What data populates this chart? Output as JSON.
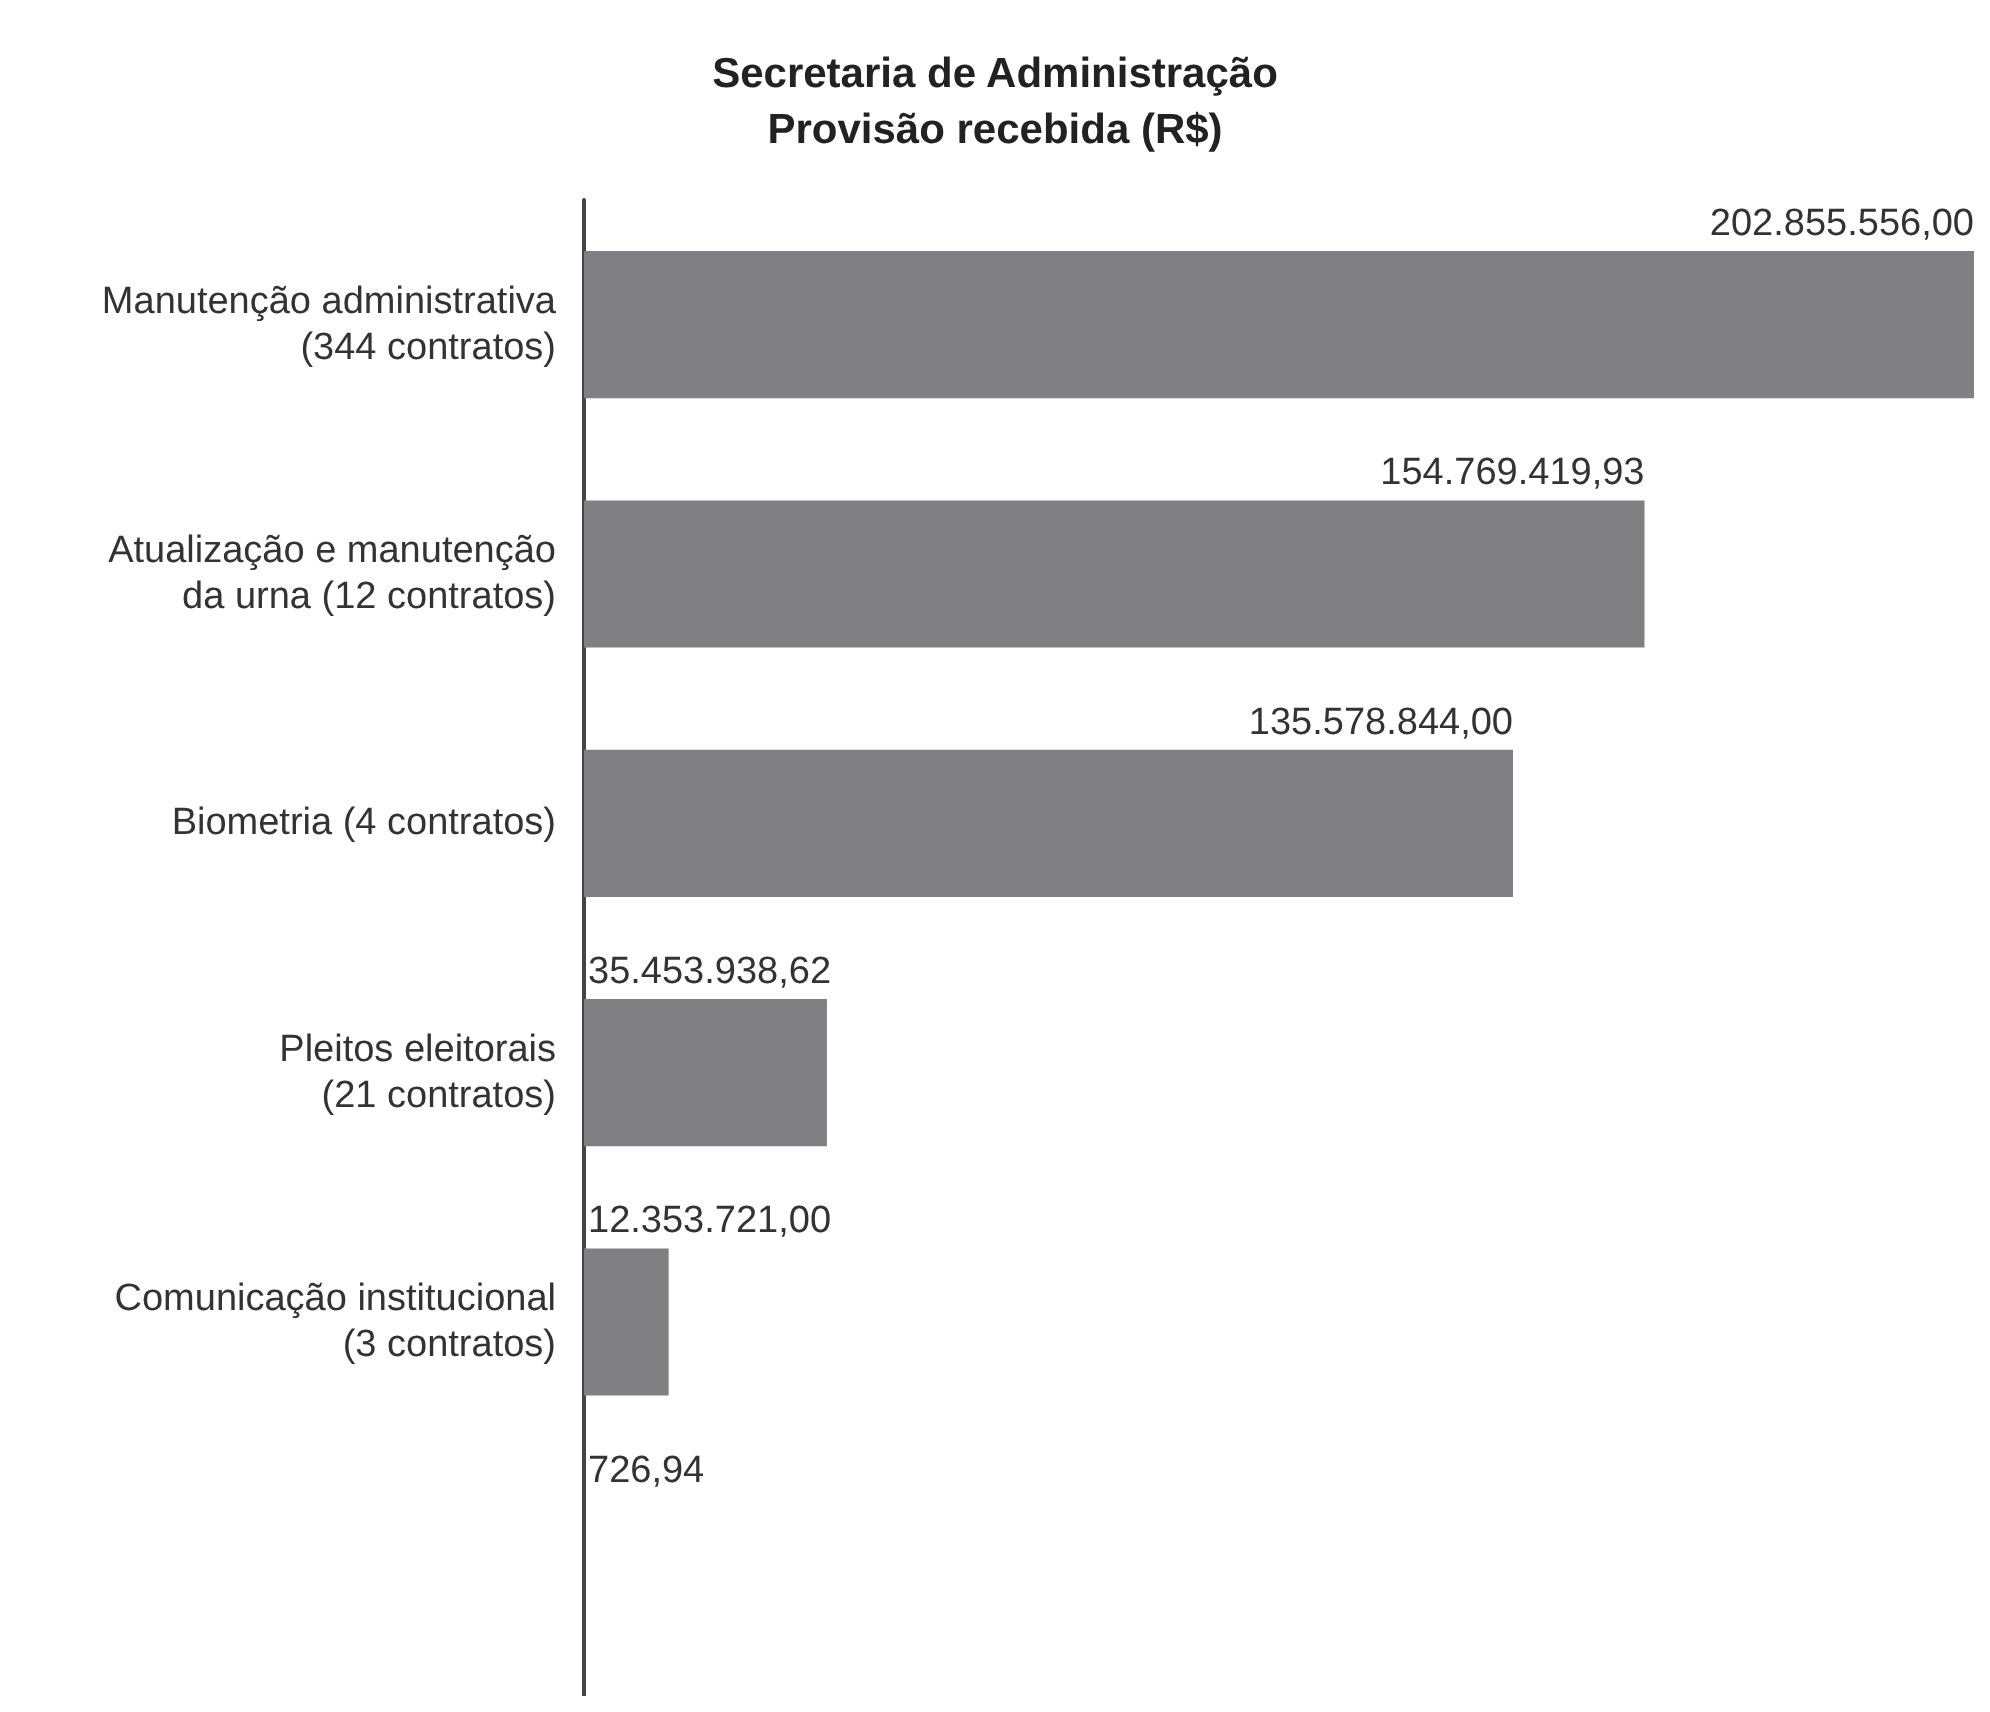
{
  "chart_data": {
    "type": "bar",
    "orientation": "horizontal",
    "title": "Secretaria de Administração\nProvisão recebida (R$)",
    "categories": [
      "Manutenção administrativa\n(344 contratos)",
      "Atualização e manutenção\nda urna (12 contratos)",
      "Biometria (4 contratos)",
      "Pleitos eleitorais\n(21 contratos)",
      "Comunicação institucional\n(3 contratos)",
      null
    ],
    "values": [
      202855556.0,
      154769419.93,
      135578844.0,
      35453938.62,
      12353721.0,
      726.94
    ],
    "value_labels": [
      "202.855.556,00",
      "154.769.419,93",
      "135.578.844,00",
      "35.453.938,62",
      "12.353.721,00",
      "726,94"
    ],
    "color": "#808084"
  }
}
